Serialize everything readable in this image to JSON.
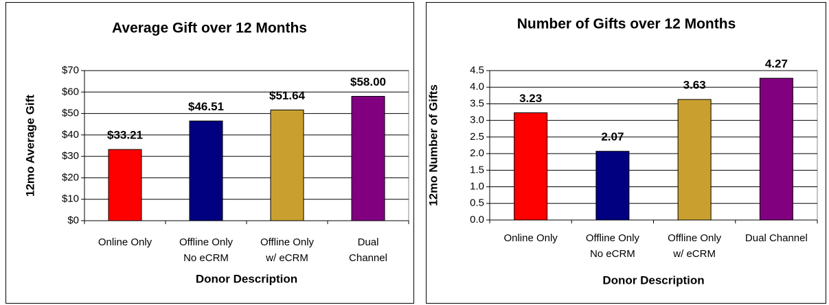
{
  "chart_data": [
    {
      "type": "bar",
      "title": "Average Gift over 12 Months",
      "ylabel": "12mo Average Gift",
      "xlabel": "Donor Description",
      "categories": [
        [
          "Online Only"
        ],
        [
          "Offline Only",
          "No eCRM"
        ],
        [
          "Offline Only",
          "w/ eCRM"
        ],
        [
          "Dual",
          "Channel"
        ]
      ],
      "values": [
        33.21,
        46.51,
        51.64,
        58.0
      ],
      "value_labels": [
        "$33.21",
        "$46.51",
        "$51.64",
        "$58.00"
      ],
      "colors": [
        "#ff0000",
        "#000080",
        "#c9a030",
        "#800080"
      ],
      "ylim": [
        0,
        70
      ],
      "yticks": [
        {
          "value": 0,
          "label": "$0"
        },
        {
          "value": 10,
          "label": "$10"
        },
        {
          "value": 20,
          "label": "$20"
        },
        {
          "value": 30,
          "label": "$30"
        },
        {
          "value": 40,
          "label": "$40"
        },
        {
          "value": 50,
          "label": "$50"
        },
        {
          "value": 60,
          "label": "$60"
        },
        {
          "value": 70,
          "label": "$70"
        }
      ],
      "grid": true
    },
    {
      "type": "bar",
      "title": "Number of Gifts over 12 Months",
      "ylabel": "12mo Number of Gifts",
      "xlabel": "Donor Description",
      "categories": [
        [
          "Online Only"
        ],
        [
          "Offline Only",
          "No eCRM"
        ],
        [
          "Offline Only",
          "w/ eCRM"
        ],
        [
          "Dual Channel"
        ]
      ],
      "values": [
        3.23,
        2.07,
        3.63,
        4.27
      ],
      "colors": [
        "#ff0000",
        "#000080",
        "#c9a030",
        "#800080"
      ],
      "ylim": [
        0,
        4.5
      ],
      "yticks": [
        {
          "value": 0,
          "label": "0.0"
        },
        0.5,
        {
          "value": 1,
          "label": "1.0"
        },
        1.5,
        {
          "value": 2,
          "label": "2.0"
        },
        2.5,
        {
          "value": 3,
          "label": "3.0"
        },
        3.5,
        {
          "value": 4,
          "label": "4.0"
        },
        4.5
      ],
      "grid": true
    }
  ]
}
